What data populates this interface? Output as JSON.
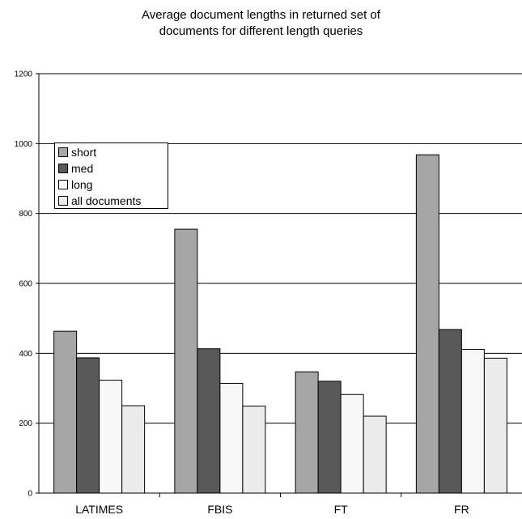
{
  "chart_data": {
    "type": "bar",
    "title_lines": [
      "Average document lengths in returned set of",
      "documents for different length queries"
    ],
    "categories": [
      "LATIMES",
      "FBIS",
      "FT",
      "FR"
    ],
    "series": [
      {
        "name": "short",
        "color": "#a6a6a6",
        "values": [
          463,
          755,
          347,
          968
        ]
      },
      {
        "name": "med",
        "color": "#595959",
        "values": [
          387,
          413,
          320,
          468
        ]
      },
      {
        "name": "long",
        "color": "#f8f8f8",
        "values": [
          323,
          314,
          282,
          411
        ]
      },
      {
        "name": "all documents",
        "color": "#ebebeb",
        "values": [
          250,
          249,
          220,
          386
        ]
      }
    ],
    "ylim": [
      0,
      1200
    ],
    "yticks": [
      0,
      200,
      400,
      600,
      800,
      1000,
      1200
    ],
    "grid": true,
    "legend_position": "upper-left"
  }
}
